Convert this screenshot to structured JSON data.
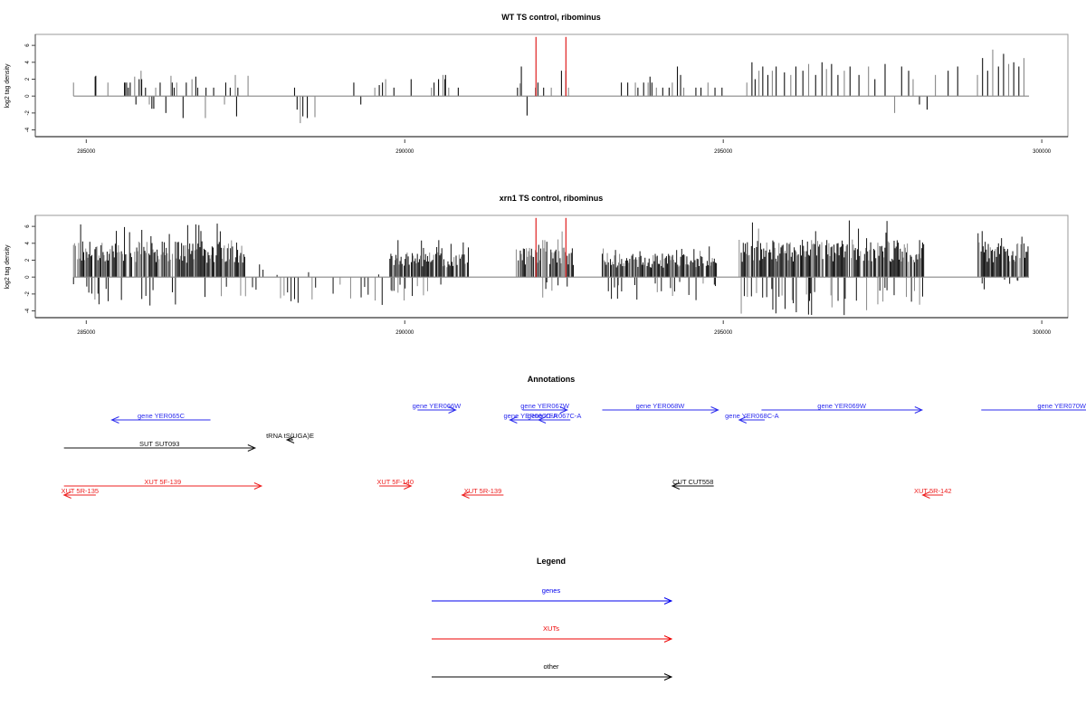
{
  "chart_data": [
    {
      "type": "bar",
      "title": "WT TS control, ribominus",
      "ylabel": "log2 tag density",
      "xlabel": "",
      "xlim": [
        284200,
        300410
      ],
      "ylim": [
        -4.8,
        7.3
      ],
      "xticks": [
        285000,
        290000,
        295000,
        300000
      ],
      "xtick_labels": [
        "285000",
        "290000",
        "295000",
        "300000"
      ],
      "yticks": [
        -4,
        -2,
        0,
        2,
        4,
        6
      ],
      "ytick_labels": [
        "-4",
        "-2",
        "0",
        "2",
        "4",
        "6"
      ],
      "highlight_color": "#e02020",
      "highlights": [
        {
          "x": 292060,
          "y": 7.0
        },
        {
          "x": 292530,
          "y": 7.0
        }
      ],
      "series": [
        {
          "name": "WT",
          "x": [
            284800,
            285140,
            285150,
            285340,
            285600,
            285620,
            285640,
            285660,
            285690,
            285760,
            285780,
            285830,
            285860,
            285870,
            285930,
            285990,
            286030,
            286060,
            286090,
            286160,
            286250,
            286330,
            286350,
            286380,
            286420,
            286520,
            286570,
            286660,
            286720,
            286750,
            286870,
            286880,
            287000,
            287170,
            287190,
            287260,
            287340,
            287360,
            287380,
            287540,
            288270,
            288310,
            288360,
            288400,
            288470,
            288590,
            289200,
            289310,
            289530,
            289600,
            289650,
            289700,
            289830,
            290100,
            290420,
            290460,
            290530,
            290600,
            290630,
            290640,
            290690,
            290840,
            291770,
            291810,
            291830,
            291920,
            292050,
            292090,
            292180,
            292300,
            292460,
            292530,
            292570,
            293400,
            293500,
            293620,
            293660,
            293750,
            293820,
            293850,
            293880,
            293950,
            294050,
            294150,
            294200,
            294280,
            294330,
            294380,
            294570,
            294650,
            294760,
            294870,
            294980,
            295370,
            295450,
            295500,
            295560,
            295620,
            295700,
            295770,
            295830,
            295960,
            296060,
            296140,
            296250,
            296340,
            296450,
            296550,
            296620,
            296700,
            296800,
            296900,
            296990,
            297130,
            297280,
            297380,
            297540,
            297690,
            297800,
            297910,
            297980,
            298080,
            298200,
            298330,
            298530,
            298680,
            298990,
            299070,
            299150,
            299230,
            299320,
            299400,
            299480,
            299560,
            299640,
            299720
          ],
          "values": [
            1.6,
            2.3,
            2.4,
            1.6,
            1.6,
            1.6,
            1.6,
            1.0,
            1.6,
            2.3,
            -1.0,
            2.0,
            3.0,
            2.0,
            1.0,
            -1.0,
            -1.5,
            -1.5,
            1.0,
            1.6,
            -2.0,
            2.4,
            1.6,
            1.0,
            1.6,
            -2.6,
            1.6,
            2.0,
            2.3,
            1.0,
            -2.6,
            1.0,
            1.0,
            -1.0,
            1.6,
            1.0,
            2.5,
            -2.4,
            1.0,
            2.4,
            1.0,
            -1.6,
            -3.2,
            -2.4,
            -2.6,
            -2.5,
            1.6,
            -1.0,
            1.0,
            1.3,
            1.6,
            2.0,
            1.0,
            2.0,
            1.0,
            1.6,
            2.0,
            2.5,
            2.0,
            2.5,
            1.0,
            1.0,
            1.0,
            1.5,
            3.5,
            -2.3,
            1.0,
            1.6,
            1.0,
            1.0,
            3.0,
            3.0,
            1.0,
            1.6,
            1.6,
            1.6,
            1.0,
            1.6,
            1.6,
            2.3,
            1.6,
            1.0,
            1.0,
            1.0,
            1.6,
            3.5,
            2.5,
            1.0,
            1.0,
            1.0,
            1.6,
            1.0,
            1.0,
            1.6,
            4.0,
            2.0,
            3.0,
            3.5,
            2.5,
            3.0,
            3.5,
            2.8,
            2.5,
            3.5,
            3.0,
            3.8,
            2.5,
            4.0,
            3.2,
            3.8,
            2.5,
            3.0,
            3.5,
            2.5,
            3.5,
            2.0,
            3.8,
            -2.0,
            3.5,
            3.0,
            2.0,
            -1.0,
            -1.6,
            2.5,
            3.0,
            3.5,
            2.5,
            4.5,
            3.0,
            5.5,
            3.5,
            5.0,
            3.8,
            4.0,
            3.5,
            4.5
          ]
        }
      ]
    },
    {
      "type": "bar",
      "title": "xrn1 TS control, ribominus",
      "ylabel": "log2 tag density",
      "xlabel": "",
      "xlim": [
        284200,
        300410
      ],
      "ylim": [
        -4.8,
        7.3
      ],
      "xticks": [
        285000,
        290000,
        295000,
        300000
      ],
      "xtick_labels": [
        "285000",
        "290000",
        "295000",
        "300000"
      ],
      "yticks": [
        -4,
        -2,
        0,
        2,
        4,
        6
      ],
      "ytick_labels": [
        "-4",
        "-2",
        "0",
        "2",
        "4",
        "6"
      ],
      "highlight_color": "#e02020",
      "highlights": [
        {
          "x": 292060,
          "y": 7.0
        },
        {
          "x": 292530,
          "y": 7.0
        }
      ],
      "dense_regions": [
        {
          "from": 284800,
          "to": 287500,
          "max": 6.5,
          "min": -3.5
        },
        {
          "from": 289750,
          "to": 291000,
          "max": 4.5,
          "min": -2.8
        },
        {
          "from": 291750,
          "to": 292650,
          "max": 5.5,
          "min": -2.5
        },
        {
          "from": 293100,
          "to": 294900,
          "max": 4.3,
          "min": -2.8
        },
        {
          "from": 295250,
          "to": 298150,
          "max": 6.8,
          "min": -4.5
        },
        {
          "from": 299000,
          "to": 299800,
          "max": 6.5,
          "min": -1.5
        }
      ],
      "sparse_regions": [
        {
          "from": 287500,
          "to": 289650,
          "max": 1.5,
          "min": -3.3
        }
      ],
      "series": [
        {
          "name": "xrn1"
        }
      ]
    }
  ],
  "annotations": {
    "title": "Annotations",
    "features": [
      {
        "label": "gene YER065C",
        "type": "gene",
        "start": 285400,
        "end": 286950,
        "strand": "-",
        "row": 1
      },
      {
        "label": "gene YER066W",
        "type": "gene",
        "start": 290200,
        "end": 290800,
        "strand": "+",
        "row": 0
      },
      {
        "label": "gene YER067W",
        "type": "gene",
        "start": 291850,
        "end": 292550,
        "strand": "+",
        "row": 0
      },
      {
        "label": "gene YER066C-A",
        "type": "gene",
        "start": 291650,
        "end": 292300,
        "strand": "-",
        "row": 1
      },
      {
        "label": "gene YER067C-A",
        "type": "gene",
        "start": 292100,
        "end": 292600,
        "strand": "-",
        "row": 1
      },
      {
        "label": "gene YER068W",
        "type": "gene",
        "start": 293100,
        "end": 294920,
        "strand": "+",
        "row": 0
      },
      {
        "label": "gene YER068C-A",
        "type": "gene",
        "start": 295250,
        "end": 295650,
        "strand": "-",
        "row": 1
      },
      {
        "label": "gene YER069W",
        "type": "gene",
        "start": 295600,
        "end": 298120,
        "strand": "+",
        "row": 0
      },
      {
        "label": "gene YER070W",
        "type": "gene",
        "start": 299050,
        "end": 301500,
        "strand": "+",
        "row": 0
      },
      {
        "label": "tRNA tS(UGA)E",
        "type": "other",
        "start": 288150,
        "end": 288250,
        "strand": "-",
        "row": 2
      },
      {
        "label": "SUT SUT093",
        "type": "other",
        "start": 284650,
        "end": 287650,
        "strand": "+",
        "row": 3
      },
      {
        "label": "XUT 5F-139",
        "type": "xut",
        "start": 284650,
        "end": 287750,
        "strand": "+",
        "row": 4
      },
      {
        "label": "XUT 5R-135",
        "type": "xut",
        "start": 284650,
        "end": 285150,
        "strand": "-",
        "row": 5
      },
      {
        "label": "XUT 5F-140",
        "type": "xut",
        "start": 289600,
        "end": 290100,
        "strand": "+",
        "row": 4
      },
      {
        "label": "XUT 5R-139",
        "type": "xut",
        "start": 290900,
        "end": 291550,
        "strand": "-",
        "row": 5
      },
      {
        "label": "CUT CUT558",
        "type": "other",
        "start": 294200,
        "end": 294850,
        "strand": "-",
        "row": 4
      },
      {
        "label": "XUT 5R-142",
        "type": "xut",
        "start": 298130,
        "end": 298450,
        "strand": "-",
        "row": 5
      }
    ]
  },
  "legend": {
    "title": "Legend",
    "items": [
      {
        "label": "genes",
        "color": "#0000ee"
      },
      {
        "label": "XUTs",
        "color": "#ee0000"
      },
      {
        "label": "other",
        "color": "#000000"
      }
    ]
  },
  "colors": {
    "gene": "#2b2bee",
    "xut": "#ee2020",
    "other": "#111111",
    "axis": "#999999"
  }
}
